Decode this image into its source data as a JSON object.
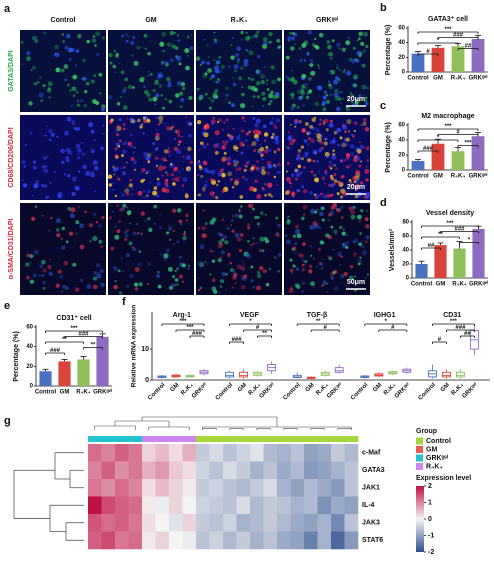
{
  "panel_labels": [
    "a",
    "b",
    "c",
    "d",
    "e",
    "f",
    "g"
  ],
  "images": {
    "columns": [
      "Control",
      "GM",
      "R₄K₄",
      "GRKᵍᵉˡ"
    ],
    "rows": [
      "GATA3/DAPI",
      "CD68/CD206/DAPI",
      "α-SMA/CD31/DAPI"
    ],
    "scale_bars": [
      "20μm",
      "20μm",
      "50μm"
    ]
  },
  "chart_data": [
    {
      "type": "bar",
      "title": "GATA3⁺ cell",
      "y_label": "Percentage (%)",
      "categories": [
        "Control",
        "GM",
        "R₄K₄",
        "GRKᵍᵉˡ"
      ],
      "colors": [
        "#4a72c0",
        "#d9443a",
        "#8fbf5a",
        "#8c6bc0"
      ],
      "values": [
        25,
        33,
        35,
        45
      ],
      "errors": [
        3,
        3,
        4,
        5
      ],
      "ylim": [
        0,
        60
      ],
      "yticks": [
        0,
        20,
        40,
        60
      ],
      "annotations": [
        "***",
        "###",
        "*",
        "##",
        "#"
      ]
    },
    {
      "type": "bar",
      "title": "M2 macrophage",
      "y_label": "Percentage (%)",
      "categories": [
        "Control",
        "GM",
        "R₄K₄",
        "GRKᵍᵉˡ"
      ],
      "colors": [
        "#4a72c0",
        "#d9443a",
        "#8fbf5a",
        "#8c6bc0"
      ],
      "values": [
        12,
        35,
        25,
        45
      ],
      "errors": [
        2,
        6,
        5,
        5
      ],
      "ylim": [
        0,
        60
      ],
      "yticks": [
        0,
        20,
        40,
        60
      ],
      "annotations": [
        "***",
        "#",
        "*",
        "***",
        "###"
      ]
    },
    {
      "type": "bar",
      "title": "Vessel density",
      "y_label": "Vessels/mm²",
      "categories": [
        "Control",
        "GM",
        "R₄K₄",
        "GRKᵍᵉˡ"
      ],
      "colors": [
        "#4a72c0",
        "#d9443a",
        "#8fbf5a",
        "#8c6bc0"
      ],
      "values": [
        20,
        47,
        42,
        70
      ],
      "errors": [
        4,
        3,
        10,
        4
      ],
      "ylim": [
        0,
        80
      ],
      "yticks": [
        0,
        20,
        40,
        60,
        80
      ],
      "annotations": [
        "***",
        "###",
        "**",
        "*",
        "##"
      ]
    },
    {
      "type": "bar",
      "title": "CD31⁺ cell",
      "y_label": "Percentage (%)",
      "categories": [
        "Control",
        "GM",
        "R₄K₄",
        "GRKᵍᵉˡ"
      ],
      "colors": [
        "#4a72c0",
        "#d9443a",
        "#8fbf5a",
        "#8c6bc0"
      ],
      "values": [
        15,
        25,
        27,
        50
      ],
      "errors": [
        2,
        2,
        3,
        3
      ],
      "ylim": [
        0,
        60
      ],
      "yticks": [
        0,
        20,
        40,
        60
      ],
      "annotations": [
        "***",
        "###",
        "**",
        "**",
        "###"
      ]
    },
    {
      "type": "box",
      "y_label": "Relative mRNA expression",
      "groups": [
        "Arg-1",
        "VEGF",
        "TGF-β",
        "IGHG1",
        "CD31"
      ],
      "categories": [
        "Control",
        "GM",
        "R₄K₄",
        "GRKᵍᵉˡ"
      ],
      "colors": [
        "#4a72c0",
        "#d9443a",
        "#8fbf5a",
        "#8c6bc0"
      ],
      "values": [
        [
          [
            0.5,
            0.8,
            1,
            1.3,
            1.6
          ],
          [
            0.8,
            1,
            1.3,
            1.6,
            2
          ],
          [
            0.8,
            1,
            1.2,
            1.5,
            1.8
          ],
          [
            1.5,
            2,
            2.5,
            3,
            3.5
          ]
        ],
        [
          [
            0.5,
            1,
            1.5,
            2.5,
            3
          ],
          [
            0.5,
            1,
            1.5,
            2.5,
            3.5
          ],
          [
            1,
            1.5,
            2,
            2.5,
            3
          ],
          [
            2,
            3,
            4,
            5,
            6
          ]
        ],
        [
          [
            0.5,
            0.8,
            1,
            1.5,
            2.5
          ],
          [
            0.3,
            0.5,
            0.7,
            0.9,
            1.2
          ],
          [
            1,
            1.5,
            2,
            2.5,
            3
          ],
          [
            2,
            2.5,
            3,
            4,
            5
          ]
        ],
        [
          [
            0.5,
            0.8,
            1,
            1.3,
            1.6
          ],
          [
            1,
            1.3,
            1.6,
            2,
            2.5
          ],
          [
            1.5,
            2,
            2.3,
            2.7,
            3
          ],
          [
            2,
            2.5,
            3,
            3.5,
            4
          ]
        ],
        [
          [
            0.5,
            1,
            2,
            3,
            5
          ],
          [
            0.5,
            1,
            1.5,
            2.5,
            3.5
          ],
          [
            0.5,
            1,
            1.5,
            2.5,
            3.5
          ],
          [
            8,
            10,
            13,
            16,
            18
          ]
        ]
      ],
      "ylim": [
        0,
        22
      ],
      "yticks": [
        0,
        10
      ],
      "annotations": [
        [
          "***",
          "***",
          "###"
        ],
        [
          "*",
          "#",
          "**",
          "###"
        ],
        [
          "**",
          "#"
        ],
        [
          "*",
          "#"
        ],
        [
          "***",
          "###",
          "##",
          "#"
        ]
      ]
    },
    {
      "type": "heatmap",
      "rows": [
        "c-Maf",
        "GATA3",
        "JAK1",
        "IL-4",
        "JAK3",
        "STAT6"
      ],
      "group_title": "Group",
      "scale_title": "Expression level",
      "groups": [
        {
          "name": "Control",
          "color": "#a6d63a"
        },
        {
          "name": "GM",
          "color": "#ef5a4f"
        },
        {
          "name": "GRKᵍᵉˡ",
          "color": "#22c3cf"
        },
        {
          "name": "R₄K₄",
          "color": "#cf86f0"
        }
      ],
      "column_groups": [
        "GRKᵍᵉˡ",
        "GRKᵍᵉˡ",
        "GRKᵍᵉˡ",
        "GRKᵍᵉˡ",
        "R₄K₄",
        "R₄K₄",
        "R₄K₄",
        "R₄K₄",
        "Control",
        "Control",
        "Control",
        "Control",
        "Control",
        "Control",
        "Control",
        "Control",
        "Control",
        "Control",
        "Control",
        "Control"
      ],
      "values": [
        [
          1.2,
          1.0,
          1.3,
          1.1,
          0.3,
          0.5,
          0.2,
          0.6,
          -0.5,
          -0.3,
          -0.6,
          -0.4,
          -0.2,
          -0.7,
          -0.8,
          -0.6,
          -1.0,
          -0.9,
          -0.5,
          -0.7
        ],
        [
          1.0,
          1.3,
          0.9,
          1.1,
          0.6,
          0.8,
          0.4,
          0.2,
          -0.4,
          -0.6,
          -0.3,
          -0.5,
          -0.8,
          -0.6,
          -0.9,
          -0.7,
          -1.1,
          -1.0,
          -0.8,
          -0.6
        ],
        [
          1.1,
          0.9,
          1.2,
          1.0,
          0.2,
          0.5,
          0.3,
          0.1,
          -0.5,
          -0.4,
          -0.6,
          -0.7,
          -0.5,
          -0.3,
          -0.8,
          -1.0,
          -0.7,
          -0.9,
          -1.1,
          -0.6
        ],
        [
          2.0,
          1.5,
          1.3,
          1.2,
          0.1,
          -0.1,
          0.3,
          0.0,
          -0.4,
          -0.5,
          -0.6,
          -0.3,
          -0.7,
          -0.5,
          -0.6,
          -0.8,
          -0.7,
          -1.2,
          -0.9,
          -1.0
        ],
        [
          1.4,
          1.2,
          1.3,
          1.1,
          0.2,
          0.0,
          -0.2,
          0.3,
          -0.5,
          -0.6,
          -0.4,
          -0.8,
          -0.7,
          -0.5,
          -0.7,
          -0.9,
          -1.0,
          -0.8,
          -1.3,
          -0.6
        ],
        [
          1.3,
          1.5,
          1.1,
          1.2,
          0.1,
          0.3,
          0.0,
          -0.1,
          -0.6,
          -0.4,
          -0.7,
          -0.5,
          -0.8,
          -0.6,
          -0.9,
          -1.0,
          -1.4,
          -0.8,
          -1.7,
          -1.1
        ]
      ],
      "scale_colors": [
        "#2e4f8e",
        "#f4f4f4",
        "#c01145"
      ],
      "scale_ticks": [
        2,
        1,
        0,
        -1,
        -2
      ]
    }
  ]
}
